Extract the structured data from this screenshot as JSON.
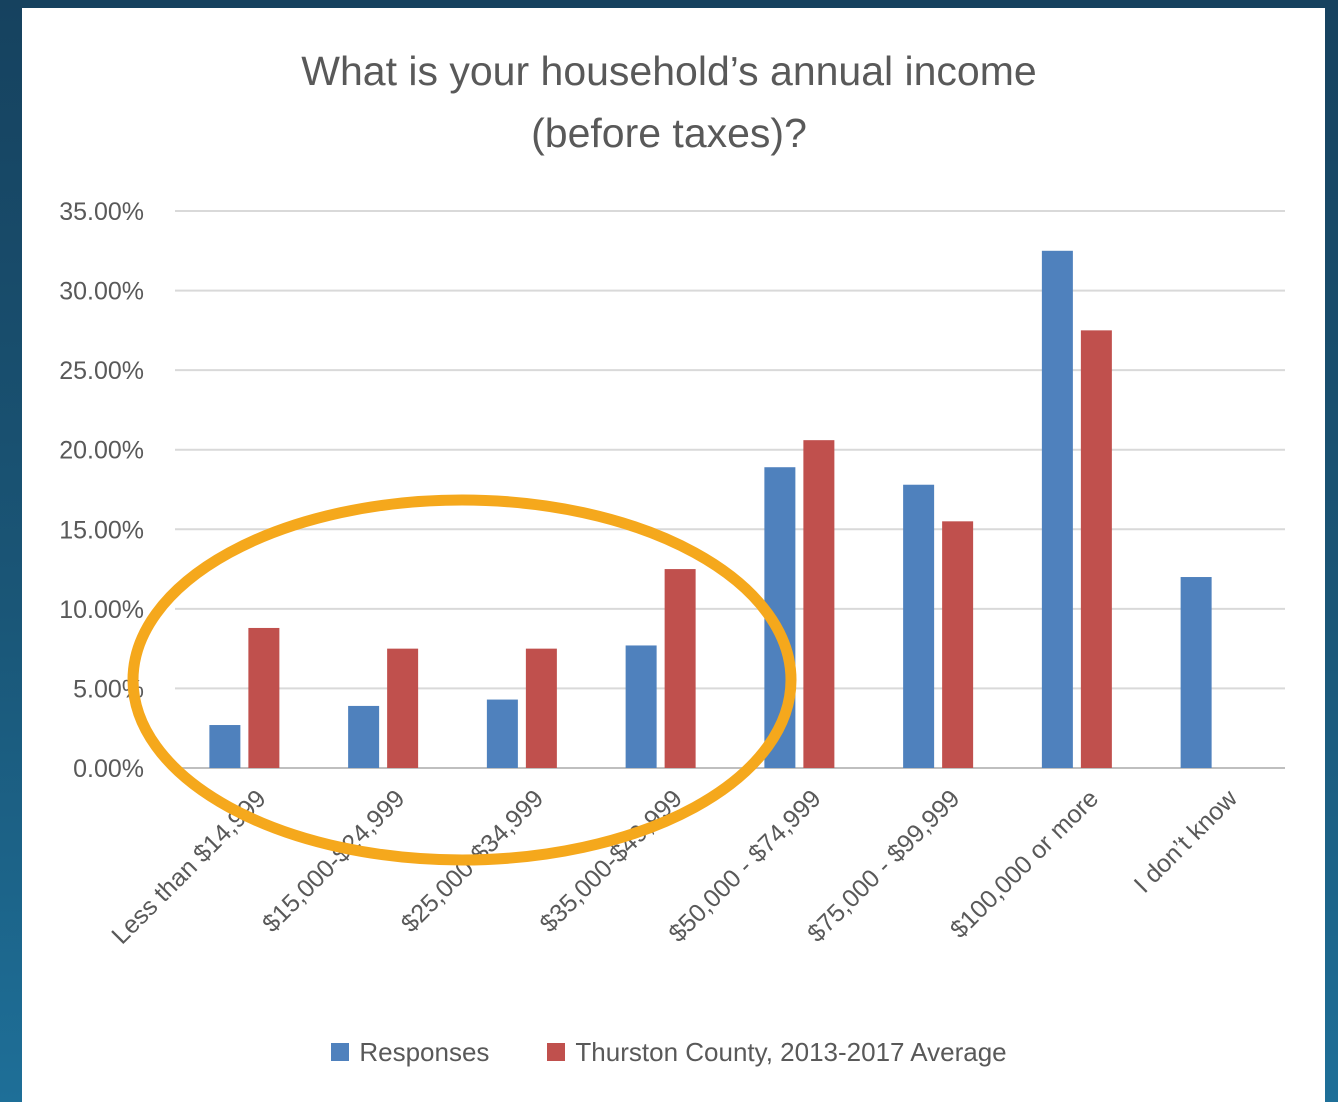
{
  "chart_data": {
    "type": "bar",
    "title": [
      "What is your household’s  annual income",
      "(before taxes)?"
    ],
    "categories": [
      "Less than $14,999",
      "$15,000-$24,999",
      "$25,000-$34,999",
      "$35,000-$49,999",
      "$50,000 - $74,999",
      "$75,000 - $99,999",
      "$100,000 or more",
      "I don’t know"
    ],
    "series": [
      {
        "name": "Responses",
        "color": "#4f81bd",
        "values": [
          2.7,
          3.9,
          4.3,
          7.7,
          18.9,
          17.8,
          32.5,
          12.0
        ]
      },
      {
        "name": "Thurston County, 2013-2017 Average",
        "color": "#c0504d",
        "values": [
          8.8,
          7.5,
          7.5,
          12.5,
          20.6,
          15.5,
          27.5,
          null
        ]
      }
    ],
    "y_ticks": [
      "0.00%",
      "5.00%",
      "10.00%",
      "15.00%",
      "20.00%",
      "25.00%",
      "30.00%",
      "35.00%"
    ],
    "ylim": [
      0,
      35
    ],
    "grid": true,
    "legend_position": "bottom",
    "annotation": {
      "shape": "ellipse",
      "color": "#f5a81c",
      "highlights": [
        "Less than $14,999",
        "$15,000-$24,999",
        "$25,000-$34,999",
        "$35,000-$49,999"
      ]
    }
  }
}
